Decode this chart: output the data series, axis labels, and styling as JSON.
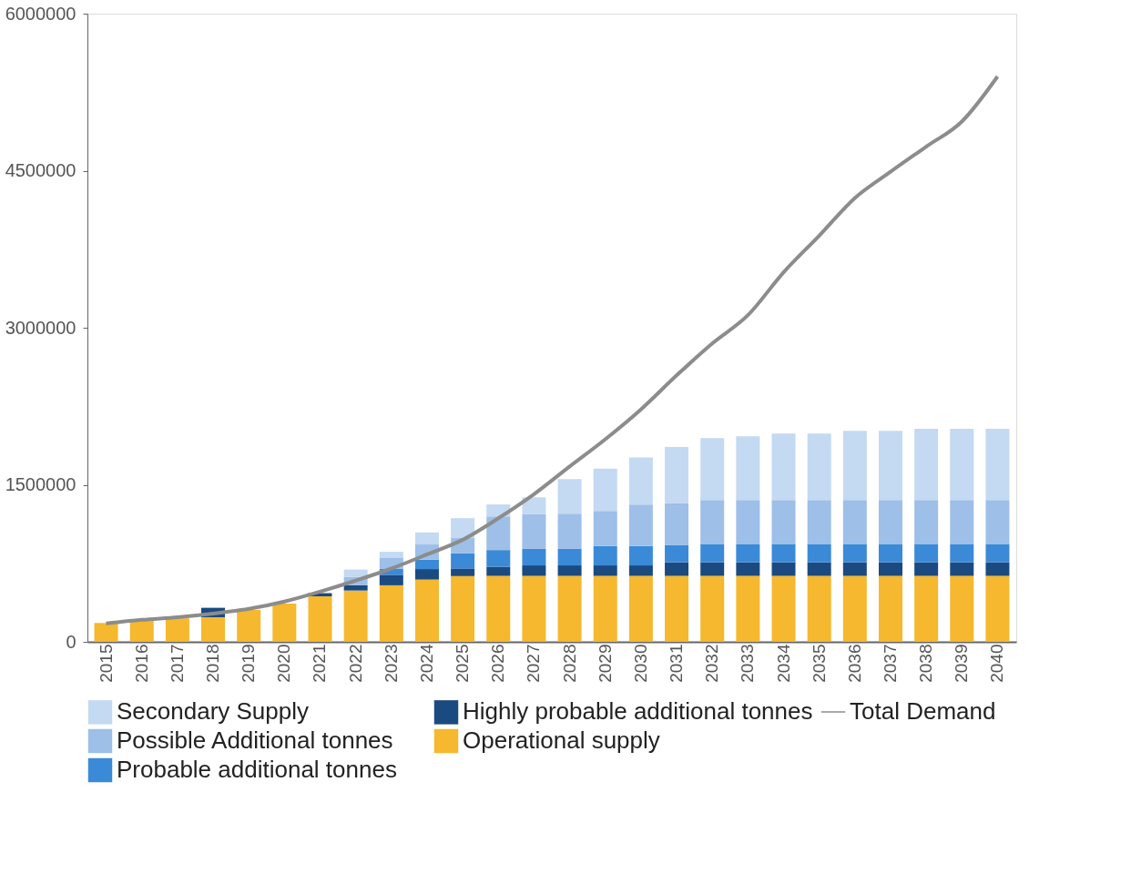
{
  "chart_data": {
    "type": "bar",
    "stacked": true,
    "categories": [
      "2015",
      "2016",
      "2017",
      "2018",
      "2019",
      "2020",
      "2021",
      "2022",
      "2023",
      "2024",
      "2025",
      "2026",
      "2027",
      "2028",
      "2029",
      "2030",
      "2031",
      "2032",
      "2033",
      "2034",
      "2035",
      "2036",
      "2037",
      "2038",
      "2039",
      "2040"
    ],
    "series": [
      {
        "name": "Operational supply",
        "color": "#f5b82e",
        "values": [
          180000,
          200000,
          225000,
          235000,
          305000,
          365000,
          435000,
          490000,
          540000,
          595000,
          628000,
          630000,
          630000,
          630000,
          630000,
          630000,
          630000,
          630000,
          630000,
          630000,
          630000,
          630000,
          630000,
          630000,
          630000,
          630000
        ]
      },
      {
        "name": "Highly probable additional tonnes",
        "color": "#1a4a80",
        "values": [
          0,
          0,
          0,
          90000,
          0,
          0,
          30000,
          50000,
          100000,
          100000,
          73000,
          87000,
          100000,
          100000,
          100000,
          100000,
          130000,
          130000,
          130000,
          130000,
          130000,
          130000,
          130000,
          130000,
          130000,
          130000
        ]
      },
      {
        "name": "Probable additional tonnes",
        "color": "#3a8ad8",
        "values": [
          0,
          0,
          0,
          0,
          0,
          0,
          0,
          0,
          60000,
          90000,
          145000,
          160000,
          160000,
          160000,
          185000,
          185000,
          165000,
          175000,
          175000,
          175000,
          175000,
          175000,
          175000,
          175000,
          175000,
          175000
        ]
      },
      {
        "name": "Possible Additional tonnes",
        "color": "#9dbfe8",
        "values": [
          0,
          0,
          0,
          0,
          0,
          0,
          0,
          80000,
          100000,
          145000,
          145000,
          320000,
          330000,
          335000,
          335000,
          395000,
          400000,
          420000,
          420000,
          420000,
          420000,
          420000,
          420000,
          420000,
          420000,
          420000
        ]
      },
      {
        "name": "Secondary Supply",
        "color": "#c4d9f2",
        "values": [
          0,
          0,
          0,
          0,
          0,
          0,
          0,
          70000,
          60000,
          115000,
          190000,
          115000,
          160000,
          330000,
          405000,
          450000,
          535000,
          590000,
          607000,
          635000,
          635000,
          660000,
          660000,
          680000,
          680000,
          680000
        ]
      },
      {
        "name": "Total Demand",
        "type": "line",
        "color": "#8c8c8c",
        "values": [
          175000,
          210000,
          235000,
          270000,
          315000,
          385000,
          480000,
          585000,
          700000,
          835000,
          975000,
          1180000,
          1410000,
          1675000,
          1935000,
          2220000,
          2545000,
          2850000,
          3120000,
          3530000,
          3880000,
          4240000,
          4490000,
          4730000,
          4970000,
          5400000
        ]
      }
    ],
    "ylim": [
      0,
      6000000
    ],
    "yticks": [
      0,
      1500000,
      3000000,
      4500000,
      6000000
    ],
    "grid": false,
    "legend": "bottom"
  }
}
